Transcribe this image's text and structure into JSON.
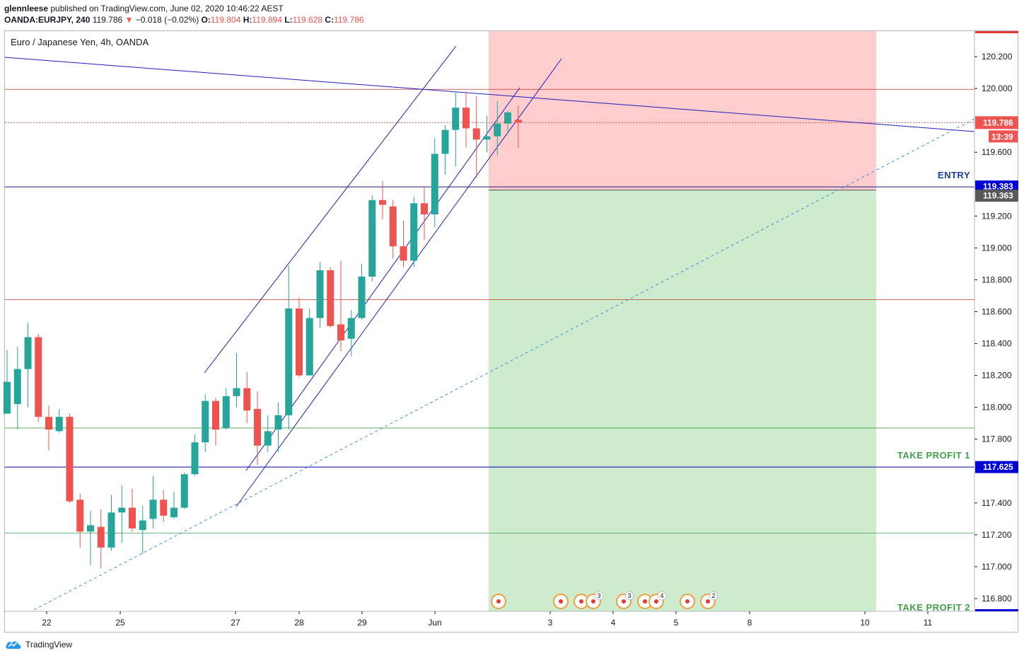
{
  "header": {
    "publisher": "glennleese",
    "published_text": "published on TradingView.com, June 02, 2020 10:46:22 AEST",
    "symbol": "OANDA:EURJPY, 240",
    "last": "119.786",
    "change_arrow": "▼",
    "change": "−0.018 (−0.02%)",
    "o_label": "O:",
    "o_value": "119.804",
    "h_label": "H:",
    "h_value": "119.894",
    "l_label": "L:",
    "l_value": "119.628",
    "c_label": "C:",
    "c_value": "119.786"
  },
  "footer": {
    "brand": "TradingView"
  },
  "colors": {
    "up": "#26a69a",
    "down": "#ef5350",
    "trend": "#1e1ebe",
    "risk": "#ffcdcd",
    "reward": "#cdebcd",
    "entry_tag": "#0000d6",
    "target_tag": "#0000d6",
    "stop_tag": "#595959",
    "price_tag": "#ef5350"
  },
  "chart_data": {
    "type": "candlestick",
    "title": "Euro / Japanese Yen, 4h, OANDA",
    "ylim": [
      116.72,
      120.36
    ],
    "y_ticks": [
      "120.200",
      "120.000",
      "119.600",
      "119.200",
      "119.000",
      "118.800",
      "118.600",
      "118.400",
      "118.200",
      "118.000",
      "117.800",
      "117.400",
      "117.200",
      "117.000",
      "116.800"
    ],
    "x_ticks": [
      "22",
      "25",
      "27",
      "28",
      "29",
      "Jun",
      "3",
      "4",
      "5",
      "8",
      "10",
      "11"
    ],
    "candles": [
      [
        117.96,
        118.16,
        117.98,
        118.36
      ],
      [
        118.02,
        118.24,
        117.86,
        118.38
      ],
      [
        118.24,
        118.44,
        118.0,
        118.53
      ],
      [
        118.44,
        117.94,
        117.91,
        118.46
      ],
      [
        117.94,
        117.86,
        117.73,
        118.01
      ],
      [
        117.85,
        117.94,
        117.84,
        117.99
      ],
      [
        117.94,
        117.41,
        117.4,
        117.96
      ],
      [
        117.42,
        117.22,
        117.12,
        117.46
      ],
      [
        117.22,
        117.26,
        117.01,
        117.35
      ],
      [
        117.25,
        117.12,
        116.99,
        117.36
      ],
      [
        117.12,
        117.34,
        117.1,
        117.45
      ],
      [
        117.34,
        117.37,
        117.15,
        117.51
      ],
      [
        117.37,
        117.24,
        117.22,
        117.49
      ],
      [
        117.23,
        117.29,
        117.08,
        117.38
      ],
      [
        117.3,
        117.42,
        117.24,
        117.57
      ],
      [
        117.42,
        117.32,
        117.28,
        117.48
      ],
      [
        117.31,
        117.37,
        117.3,
        117.47
      ],
      [
        117.37,
        117.58,
        117.36,
        117.59
      ],
      [
        117.58,
        117.78,
        117.57,
        117.83
      ],
      [
        117.78,
        118.04,
        117.72,
        118.08
      ],
      [
        118.04,
        117.86,
        117.76,
        118.06
      ],
      [
        117.87,
        118.07,
        117.86,
        118.12
      ],
      [
        118.07,
        118.12,
        118.0,
        118.34
      ],
      [
        118.12,
        117.98,
        117.9,
        118.22
      ],
      [
        117.99,
        117.76,
        117.64,
        118.1
      ],
      [
        117.76,
        117.85,
        117.72,
        117.95
      ],
      [
        117.86,
        117.95,
        117.72,
        118.03
      ],
      [
        117.95,
        118.62,
        117.86,
        118.89
      ],
      [
        118.62,
        118.2,
        118.19,
        118.69
      ],
      [
        118.2,
        118.56,
        118.2,
        118.62
      ],
      [
        118.56,
        118.86,
        118.5,
        118.91
      ],
      [
        118.86,
        118.51,
        118.5,
        118.88
      ],
      [
        118.52,
        118.42,
        118.35,
        118.92
      ],
      [
        118.43,
        118.56,
        118.32,
        118.61
      ],
      [
        118.56,
        118.82,
        118.55,
        118.9
      ],
      [
        118.82,
        119.3,
        118.79,
        119.33
      ],
      [
        119.3,
        119.27,
        119.18,
        119.42
      ],
      [
        119.26,
        119.01,
        118.93,
        119.3
      ],
      [
        119.01,
        118.92,
        118.88,
        119.17
      ],
      [
        118.92,
        119.28,
        118.88,
        119.32
      ],
      [
        119.28,
        119.21,
        119.05,
        119.38
      ],
      [
        119.21,
        119.59,
        119.13,
        119.69
      ],
      [
        119.59,
        119.74,
        119.46,
        119.77
      ],
      [
        119.74,
        119.88,
        119.51,
        119.98
      ],
      [
        119.88,
        119.75,
        119.63,
        119.98
      ],
      [
        119.75,
        119.68,
        119.44,
        119.95
      ],
      [
        119.68,
        119.7,
        119.6,
        119.83
      ],
      [
        119.7,
        119.78,
        119.58,
        119.92
      ],
      [
        119.78,
        119.85,
        119.72,
        119.86
      ],
      [
        119.804,
        119.786,
        119.628,
        119.894
      ]
    ],
    "levels": {
      "entry": 119.383,
      "stop": 119.363,
      "take_profit_1": 117.625,
      "resistance_120": 119.995,
      "current": 119.786,
      "red_line": 118.675,
      "green_line_1": 117.87,
      "green_line_2": 117.21
    },
    "labels": {
      "entry": "ENTRY",
      "tp1": "TAKE PROFIT 1",
      "tp2": "TAKE PROFIT 2",
      "price_tag": "119.786",
      "countdown": "13:39",
      "entry_tag": "119.383",
      "stop_tag": "119.363",
      "tp1_tag": "117.625"
    },
    "events": [
      {
        "badge": ""
      },
      {
        "badge": ""
      },
      {
        "badge": ""
      },
      {
        "badge": "3"
      },
      {
        "badge": "3"
      },
      {
        "badge": ""
      },
      {
        "badge": "4"
      },
      {
        "badge": ""
      },
      {
        "badge": "2"
      }
    ]
  }
}
